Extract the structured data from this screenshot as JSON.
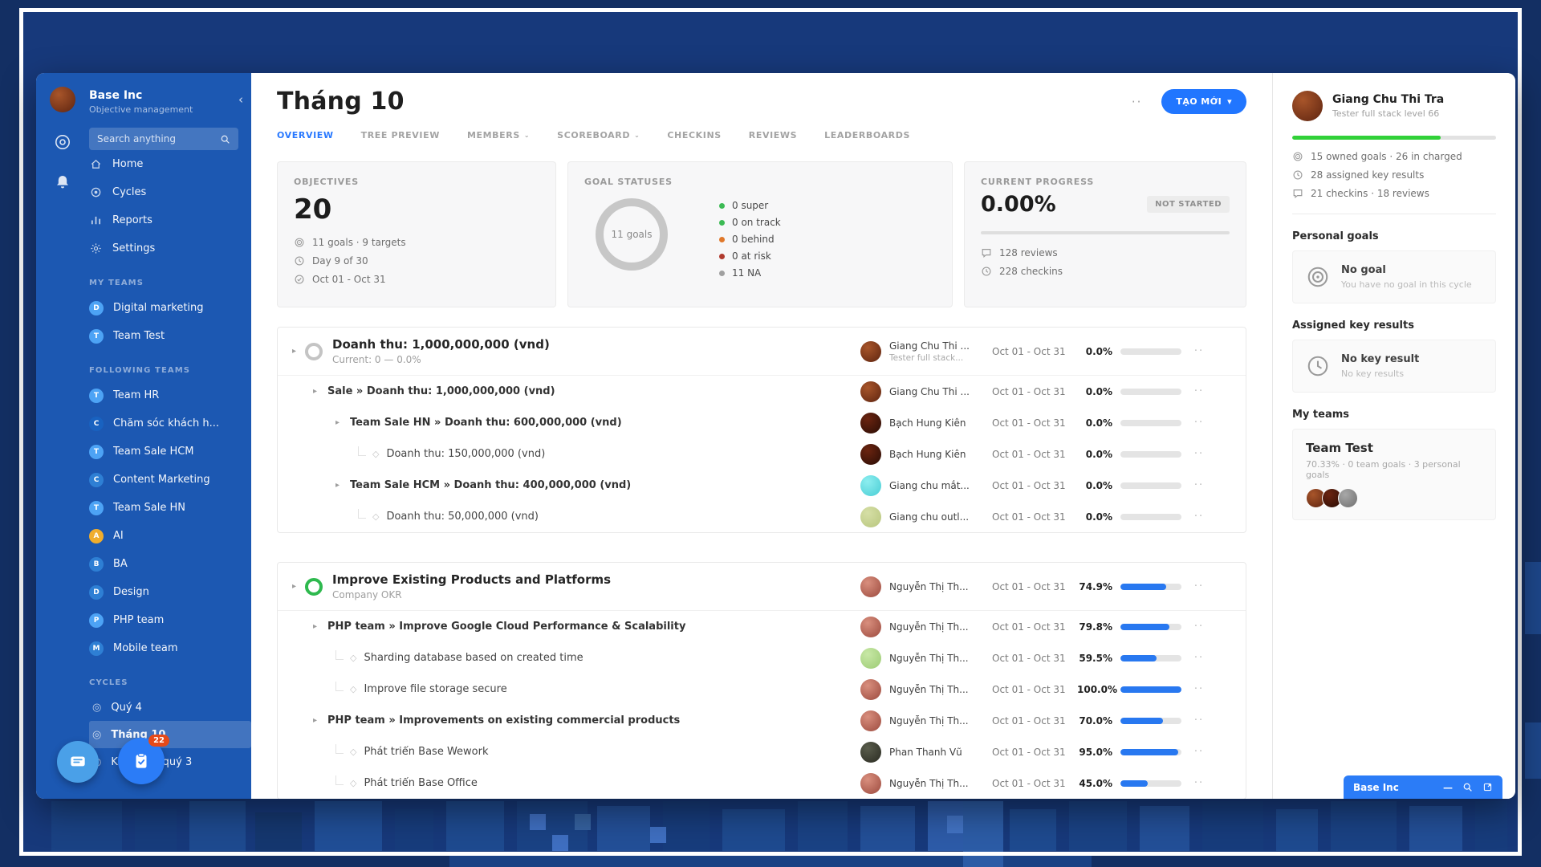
{
  "sidebar": {
    "org_name": "Base Inc",
    "org_subtitle": "Objective management",
    "search_placeholder": "Search anything",
    "nav_items": [
      {
        "icon": "home-icon",
        "label": "Home"
      },
      {
        "icon": "cycles-icon",
        "label": "Cycles"
      },
      {
        "icon": "reports-icon",
        "label": "Reports"
      },
      {
        "icon": "settings-icon",
        "label": "Settings"
      }
    ],
    "team_sections": [
      {
        "title": "MY TEAMS",
        "teams": [
          {
            "initial": "D",
            "label": "Digital marketing",
            "color": "#4da3f5"
          },
          {
            "initial": "T",
            "label": "Team Test",
            "color": "#4da3f5"
          }
        ]
      },
      {
        "title": "FOLLOWING TEAMS",
        "teams": [
          {
            "initial": "T",
            "label": "Team HR",
            "color": "#4da3f5"
          },
          {
            "initial": "C",
            "label": "Chăm sóc khách h...",
            "color": "#1962c0"
          },
          {
            "initial": "T",
            "label": "Team Sale HCM",
            "color": "#4da3f5"
          },
          {
            "initial": "C",
            "label": "Content Marketing",
            "color": "#2e7fd4"
          },
          {
            "initial": "T",
            "label": "Team Sale HN",
            "color": "#4da3f5"
          },
          {
            "initial": "A",
            "label": "AI",
            "color": "#f0ad2d"
          },
          {
            "initial": "B",
            "label": "BA",
            "color": "#2e7fd4"
          },
          {
            "initial": "D",
            "label": "Design",
            "color": "#2e7fd4"
          },
          {
            "initial": "P",
            "label": "PHP team",
            "color": "#4da3f5"
          },
          {
            "initial": "M",
            "label": "Mobile team",
            "color": "#2e7fd4"
          }
        ]
      }
    ],
    "cycles_section": {
      "title": "CYCLES",
      "items": [
        {
          "label": "Quý 4",
          "active": false
        },
        {
          "label": "Tháng 10",
          "active": true
        },
        {
          "label": "Kế hoạch quý 3",
          "active": false
        }
      ]
    },
    "tasks_badge": "22"
  },
  "header": {
    "title": "Tháng 10",
    "more": "··",
    "create_button": "TẠO MỚI",
    "create_caret": "▾"
  },
  "tabs": [
    {
      "label": "OVERVIEW",
      "active": true,
      "dropdown": false
    },
    {
      "label": "TREE PREVIEW",
      "active": false,
      "dropdown": false
    },
    {
      "label": "MEMBERS",
      "active": false,
      "dropdown": true
    },
    {
      "label": "SCOREBOARD",
      "active": false,
      "dropdown": true
    },
    {
      "label": "CHECKINS",
      "active": false,
      "dropdown": false
    },
    {
      "label": "REVIEWS",
      "active": false,
      "dropdown": false
    },
    {
      "label": "LEADERBOARDS",
      "active": false,
      "dropdown": false
    }
  ],
  "summary_cards": {
    "objectives": {
      "title": "OBJECTIVES",
      "value": "20",
      "stats": [
        {
          "icon": "target-icon",
          "text": "11 goals · 9 targets"
        },
        {
          "icon": "clock-icon",
          "text": "Day 9 of 30"
        },
        {
          "icon": "check-circle-icon",
          "text": "Oct 01 - Oct 31"
        }
      ]
    },
    "goal_statuses": {
      "title": "GOAL STATUSES",
      "donut_center": "11 goals",
      "legend": [
        {
          "count": "0",
          "label": "super",
          "color": "#3cba54"
        },
        {
          "count": "0",
          "label": "on track",
          "color": "#3cba54"
        },
        {
          "count": "0",
          "label": "behind",
          "color": "#e0782a"
        },
        {
          "count": "0",
          "label": "at risk",
          "color": "#b03a2e"
        },
        {
          "count": "11",
          "label": "NA",
          "color": "#a0a0a0"
        }
      ]
    },
    "current_progress": {
      "title": "CURRENT PROGRESS",
      "value": "0.00%",
      "badge": "NOT STARTED",
      "progress": 0,
      "stats": [
        {
          "icon": "comment-icon",
          "text": "128 reviews"
        },
        {
          "icon": "clock-icon",
          "text": "228 checkins"
        }
      ]
    }
  },
  "goal_table": {
    "blocks": [
      {
        "objective": {
          "title": "Doanh thu: 1,000,000,000 (vnd)",
          "subtitle": "Current: 0 — 0.0%",
          "ring_color": "#c4c4c4",
          "owner": "Giang Chu Thi ...",
          "owner_sub": "Tester full stack...",
          "avatar": "tra",
          "dates": "Oct 01 - Oct 31",
          "percent": "0.0%",
          "progress": 0
        },
        "rows": [
          {
            "level": 1,
            "type": "expand",
            "title": "Sale » Doanh thu: 1,000,000,000 (vnd)",
            "owner": "Giang Chu Thi ...",
            "avatar": "tra",
            "dates": "Oct 01 - Oct 31",
            "percent": "0.0%",
            "progress": 0
          },
          {
            "level": 2,
            "type": "expand",
            "title": "Team Sale HN » Doanh thu: 600,000,000 (vnd)",
            "owner": "Bạch Hung Kiên",
            "avatar": "kien",
            "dates": "Oct 01 - Oct 31",
            "percent": "0.0%",
            "progress": 0
          },
          {
            "level": 3,
            "type": "leaf",
            "title": "Doanh thu: 150,000,000 (vnd)",
            "owner": "Bạch Hung Kiên",
            "avatar": "kien",
            "dates": "Oct 01 - Oct 31",
            "percent": "0.0%",
            "progress": 0
          },
          {
            "level": 2,
            "type": "expand",
            "title": "Team Sale HCM » Doanh thu: 400,000,000 (vnd)",
            "owner": "Giang chu mắt...",
            "avatar": "mat",
            "dates": "Oct 01 - Oct 31",
            "percent": "0.0%",
            "progress": 0
          },
          {
            "level": 3,
            "type": "leaf",
            "title": "Doanh thu: 50,000,000 (vnd)",
            "owner": "Giang chu outl...",
            "avatar": "olive",
            "dates": "Oct 01 - Oct 31",
            "percent": "0.0%",
            "progress": 0
          }
        ]
      },
      {
        "objective": {
          "title": "Improve Existing Products and Platforms",
          "subtitle": "Company OKR",
          "ring_color": "#2eb94e",
          "owner": "Nguyễn Thị Th...",
          "owner_sub": "",
          "avatar": "th",
          "dates": "Oct 01 - Oct 31",
          "percent": "74.9%",
          "progress": 74.9
        },
        "rows": [
          {
            "level": 1,
            "type": "expand",
            "title": "PHP team » Improve Google Cloud Performance & Scalability",
            "owner": "Nguyễn Thị Th...",
            "avatar": "th",
            "dates": "Oct 01 - Oct 31",
            "percent": "79.8%",
            "progress": 79.8
          },
          {
            "level": 2,
            "type": "leaf",
            "title": "Sharding database based on created time",
            "owner": "Nguyễn Thị Th...",
            "avatar": "green",
            "dates": "Oct 01 - Oct 31",
            "percent": "59.5%",
            "progress": 59.5
          },
          {
            "level": 2,
            "type": "leaf",
            "title": "Improve file storage secure",
            "owner": "Nguyễn Thị Th...",
            "avatar": "th",
            "dates": "Oct 01 - Oct 31",
            "percent": "100.0%",
            "progress": 100
          },
          {
            "level": 1,
            "type": "expand",
            "title": "PHP team » Improvements on existing commercial products",
            "owner": "Nguyễn Thị Th...",
            "avatar": "th",
            "dates": "Oct 01 - Oct 31",
            "percent": "70.0%",
            "progress": 70
          },
          {
            "level": 2,
            "type": "leaf",
            "title": "Phát triển Base Wework",
            "owner": "Phan Thanh Vũ",
            "avatar": "vu",
            "dates": "Oct 01 - Oct 31",
            "percent": "95.0%",
            "progress": 95
          },
          {
            "level": 2,
            "type": "leaf",
            "title": "Phát triển Base Office",
            "owner": "Nguyễn Thị Th...",
            "avatar": "th",
            "dates": "Oct 01 - Oct 31",
            "percent": "45.0%",
            "progress": 45
          }
        ]
      }
    ]
  },
  "right_panel": {
    "profile": {
      "name": "Giang Chu Thi Tra",
      "subtitle": "Tester full stack level 66",
      "avatar": "tra",
      "progress_percent": 73,
      "stats": [
        {
          "icon": "target-icon",
          "text": "15 owned goals · 26 in charged"
        },
        {
          "icon": "clock-icon",
          "text": "28 assigned key results"
        },
        {
          "icon": "comment-icon",
          "text": "21 checkins · 18 reviews"
        }
      ]
    },
    "personal_goals": {
      "heading": "Personal goals",
      "icon": "target-icon",
      "title": "No goal",
      "subtitle": "You have no goal in this cycle"
    },
    "assigned_key_results": {
      "heading": "Assigned key results",
      "icon": "clock-icon",
      "title": "No key result",
      "subtitle": "No key results"
    },
    "my_teams": {
      "heading": "My teams",
      "team_name": "Team Test",
      "team_stats": "70.33% · 0 team goals · 3 personal goals",
      "member_avatars": [
        "tra",
        "kien",
        "gray"
      ]
    }
  },
  "dock": {
    "org": "Base Inc"
  },
  "avatar_colors": {
    "tra": [
      "#a8552a",
      "#5e2410"
    ],
    "kien": [
      "#6b2410",
      "#2a0d05"
    ],
    "mat": [
      "#8deef0",
      "#49cdd4"
    ],
    "olive": [
      "#d6dfa6",
      "#b8c67e"
    ],
    "th": [
      "#d98f7e",
      "#9c4a3e"
    ],
    "green": [
      "#c8e8a6",
      "#9ccb74"
    ],
    "vu": [
      "#5a5d4c",
      "#2a2b22"
    ],
    "gray": [
      "#a8a8a8",
      "#6f6f6f"
    ]
  },
  "colors": {
    "accent": "#2176ff",
    "sidebar_blue": "#1c58b2",
    "progress_green": "#31d138",
    "progress_blue": "#2878f0"
  }
}
